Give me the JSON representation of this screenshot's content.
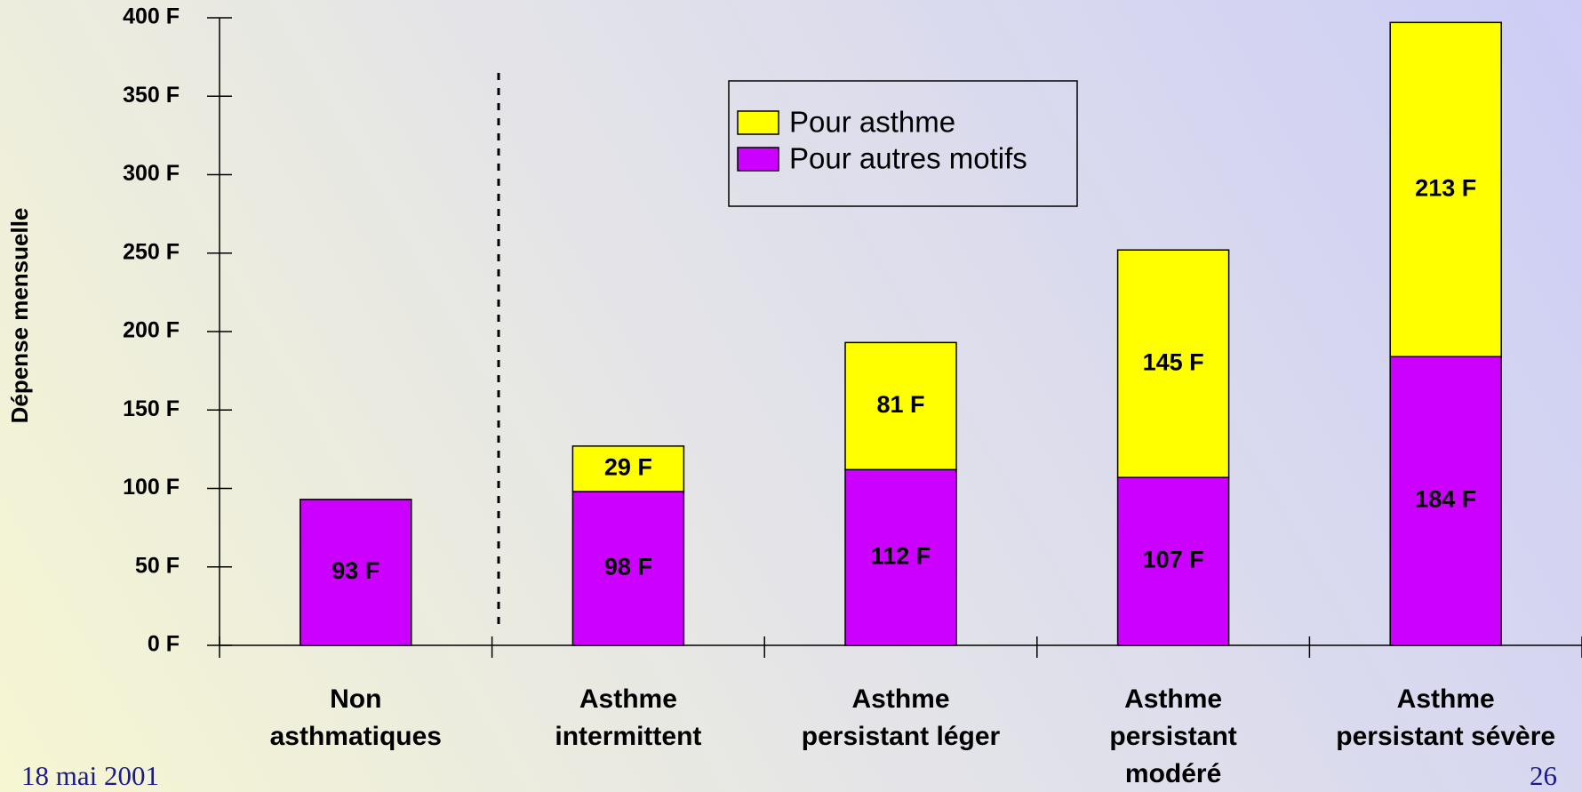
{
  "chart_data": {
    "type": "bar",
    "stacked": true,
    "ylabel": "Dépense mensuelle",
    "categories": [
      "Non asthmatiques",
      "Asthme intermittent",
      "Asthme persistant léger",
      "Asthme persistant modéré",
      "Asthme persistant sévère"
    ],
    "series": [
      {
        "name": "Pour autres motifs",
        "color": "#cc00ff",
        "values": [
          93,
          98,
          112,
          107,
          184
        ],
        "value_labels": [
          "93 F",
          "98 F",
          "112 F",
          "107 F",
          "184 F"
        ]
      },
      {
        "name": "Pour asthme",
        "color": "#ffff00",
        "values": [
          null,
          29,
          81,
          145,
          213
        ],
        "value_labels": [
          null,
          "29 F",
          "81 F",
          "145 F",
          "213 F"
        ]
      }
    ],
    "ylim": [
      0,
      400
    ],
    "yticks": [
      {
        "value": 0,
        "label": "0 F"
      },
      {
        "value": 50,
        "label": "50 F"
      },
      {
        "value": 100,
        "label": "100 F"
      },
      {
        "value": 150,
        "label": "150 F"
      },
      {
        "value": 200,
        "label": "200 F"
      },
      {
        "value": 250,
        "label": "250 F"
      },
      {
        "value": 300,
        "label": "300 F"
      },
      {
        "value": 350,
        "label": "350 F"
      },
      {
        "value": 400,
        "label": "400 F"
      }
    ],
    "legend": "top",
    "footer": {
      "date": "18 mai 2001",
      "page": "26"
    }
  }
}
